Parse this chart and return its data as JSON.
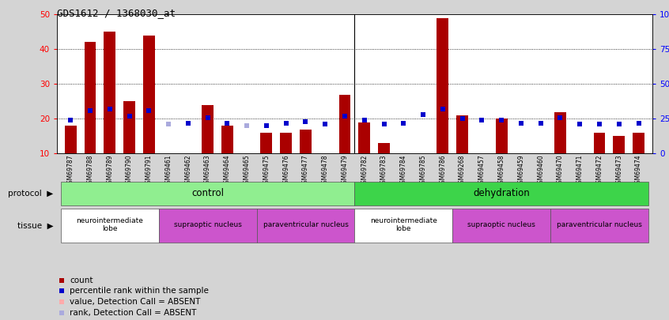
{
  "title": "GDS1612 / 1368030_at",
  "samples": [
    "GSM69787",
    "GSM69788",
    "GSM69789",
    "GSM69790",
    "GSM69791",
    "GSM69461",
    "GSM69462",
    "GSM69463",
    "GSM69464",
    "GSM69465",
    "GSM69475",
    "GSM69476",
    "GSM69477",
    "GSM69478",
    "GSM69479",
    "GSM69782",
    "GSM69783",
    "GSM69784",
    "GSM69785",
    "GSM69786",
    "GSM69268",
    "GSM69457",
    "GSM69458",
    "GSM69459",
    "GSM69460",
    "GSM69470",
    "GSM69471",
    "GSM69472",
    "GSM69473",
    "GSM69474"
  ],
  "count_values": [
    18,
    42,
    45,
    25,
    44,
    null,
    null,
    24,
    18,
    null,
    16,
    16,
    17,
    null,
    27,
    19,
    13,
    null,
    null,
    49,
    21,
    null,
    20,
    null,
    null,
    22,
    null,
    16,
    15,
    16
  ],
  "count_absent": [
    false,
    false,
    false,
    false,
    false,
    true,
    true,
    false,
    false,
    true,
    false,
    false,
    false,
    true,
    false,
    false,
    false,
    true,
    true,
    false,
    false,
    true,
    false,
    true,
    true,
    false,
    true,
    false,
    false,
    false
  ],
  "rank_values": [
    24,
    31,
    32,
    27,
    31,
    21,
    22,
    26,
    22,
    20,
    20,
    22,
    23,
    21,
    27,
    24,
    21,
    22,
    28,
    32,
    25,
    24,
    24,
    22,
    22,
    26,
    21,
    21,
    21,
    22
  ],
  "rank_absent": [
    false,
    false,
    false,
    false,
    false,
    true,
    false,
    false,
    false,
    true,
    false,
    false,
    false,
    false,
    false,
    false,
    false,
    false,
    false,
    false,
    false,
    false,
    false,
    false,
    false,
    false,
    false,
    false,
    false,
    false
  ],
  "protocol_groups": [
    {
      "label": "control",
      "start": 0,
      "end": 14,
      "color": "#90EE90"
    },
    {
      "label": "dehydration",
      "start": 15,
      "end": 29,
      "color": "#3DD44A"
    }
  ],
  "tissue_groups": [
    {
      "label": "neurointermediate\nlobe",
      "start": 0,
      "end": 4,
      "color": "#ffffff"
    },
    {
      "label": "supraoptic nucleus",
      "start": 5,
      "end": 9,
      "color": "#CC55CC"
    },
    {
      "label": "paraventricular nucleus",
      "start": 10,
      "end": 14,
      "color": "#CC55CC"
    },
    {
      "label": "neurointermediate\nlobe",
      "start": 15,
      "end": 19,
      "color": "#ffffff"
    },
    {
      "label": "supraoptic nucleus",
      "start": 20,
      "end": 24,
      "color": "#CC55CC"
    },
    {
      "label": "paraventricular nucleus",
      "start": 25,
      "end": 29,
      "color": "#CC55CC"
    }
  ],
  "bar_color_present": "#AA0000",
  "bar_color_absent": "#FFAAAA",
  "rank_color_present": "#0000CC",
  "rank_color_absent": "#AAAADD",
  "ylim_left": [
    10,
    50
  ],
  "ylim_right": [
    0,
    100
  ],
  "background_color": "#D4D4D4",
  "plot_bg_color": "#FFFFFF",
  "sep_index": 14
}
